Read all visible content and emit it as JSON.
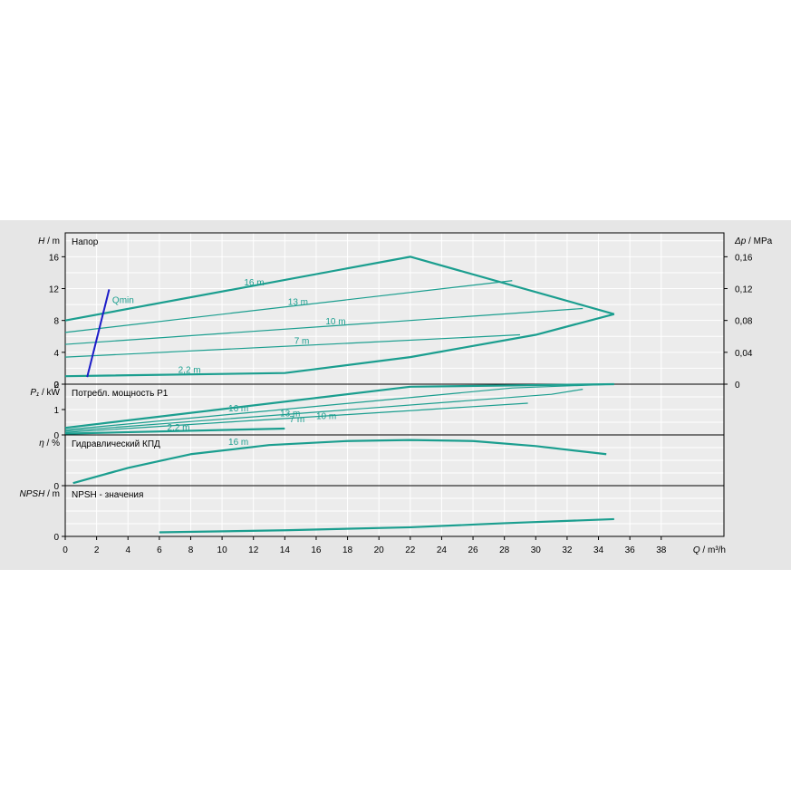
{
  "colors": {
    "background": "#e6e6e6",
    "plot": "#ececec",
    "grid": "#ffffff",
    "curve": "#1b9e8f",
    "qmin": "#1c1cc8",
    "axis": "#000000"
  },
  "chart_data": {
    "type": "line",
    "x_axis": {
      "label_symbol": "Q",
      "label_unit": "m³/h",
      "range": [
        0,
        42
      ],
      "ticks": [
        "0",
        "2",
        "4",
        "6",
        "8",
        "10",
        "12",
        "14",
        "16",
        "18",
        "20",
        "22",
        "24",
        "26",
        "28",
        "30",
        "32",
        "34",
        "36",
        "38"
      ]
    },
    "panels": [
      {
        "id": "head",
        "title": "Напор",
        "ylabel_symbol": "H",
        "ylabel_unit": "m",
        "y_range": [
          0,
          19
        ],
        "y_ticks": [
          "0",
          "4",
          "8",
          "12",
          "16"
        ],
        "right_axis": {
          "label_symbol": "Δp",
          "label_unit": "MPa",
          "ticks": [
            "0",
            "0,04",
            "0,08",
            "0,12",
            "0,16"
          ]
        },
        "series": [
          {
            "name": "16 m",
            "x": [
              0,
              22,
              35
            ],
            "y": [
              8,
              16,
              8.8
            ]
          },
          {
            "name": "13 m",
            "x": [
              0,
              28.5
            ],
            "y": [
              6.5,
              13
            ]
          },
          {
            "name": "10 m",
            "x": [
              0,
              33
            ],
            "y": [
              5,
              9.5
            ]
          },
          {
            "name": "7 m",
            "x": [
              0,
              29
            ],
            "y": [
              3.4,
              6.2
            ]
          },
          {
            "name": "2,2 m",
            "x": [
              0,
              14,
              22,
              30,
              35
            ],
            "y": [
              1,
              1.4,
              3.4,
              6.2,
              8.8
            ]
          }
        ],
        "qmin": {
          "name": "Qmin",
          "x": [
            1.4,
            2.8
          ],
          "y": [
            0.9,
            11.9
          ]
        }
      },
      {
        "id": "power",
        "title": "Потребл. мощность P1",
        "ylabel_symbol": "P₁",
        "ylabel_unit": "kW",
        "y_range": [
          0,
          2
        ],
        "y_ticks": [
          "0",
          "1",
          "2"
        ],
        "series": [
          {
            "name": "16 m",
            "x": [
              0,
              22,
              35
            ],
            "y": [
              0.28,
              1.9,
              2.0
            ]
          },
          {
            "name": "13 m",
            "x": [
              0,
              28.5,
              35
            ],
            "y": [
              0.2,
              1.85,
              2.0
            ]
          },
          {
            "name": "10 m",
            "x": [
              0,
              31,
              33
            ],
            "y": [
              0.15,
              1.6,
              1.8
            ]
          },
          {
            "name": "7 m",
            "x": [
              0,
              29.5
            ],
            "y": [
              0.1,
              1.25
            ]
          },
          {
            "name": "2,2 m",
            "x": [
              0,
              14
            ],
            "y": [
              0.05,
              0.25
            ]
          }
        ]
      },
      {
        "id": "efficiency",
        "title": "Гидравлический КПД",
        "ylabel_symbol": "η",
        "ylabel_unit": "%",
        "y_range": [
          0,
          100
        ],
        "y_ticks": [
          "0"
        ],
        "series": [
          {
            "name": "16 m",
            "x": [
              0.5,
              4,
              8,
              13,
              18,
              22,
              26,
              30,
              34.5
            ],
            "y": [
              5,
              35,
              62,
              80,
              88,
              90,
              88,
              78,
              62
            ]
          }
        ]
      },
      {
        "id": "npsh",
        "title": "NPSH - значения",
        "ylabel_symbol": "NPSH",
        "ylabel_unit": "m",
        "y_range": [
          0,
          10
        ],
        "y_ticks": [
          "0"
        ],
        "series": [
          {
            "name": "",
            "x": [
              6,
              14,
              22,
              28,
              35
            ],
            "y": [
              0.8,
              1.2,
              1.8,
              2.6,
              3.4
            ]
          }
        ]
      }
    ]
  }
}
